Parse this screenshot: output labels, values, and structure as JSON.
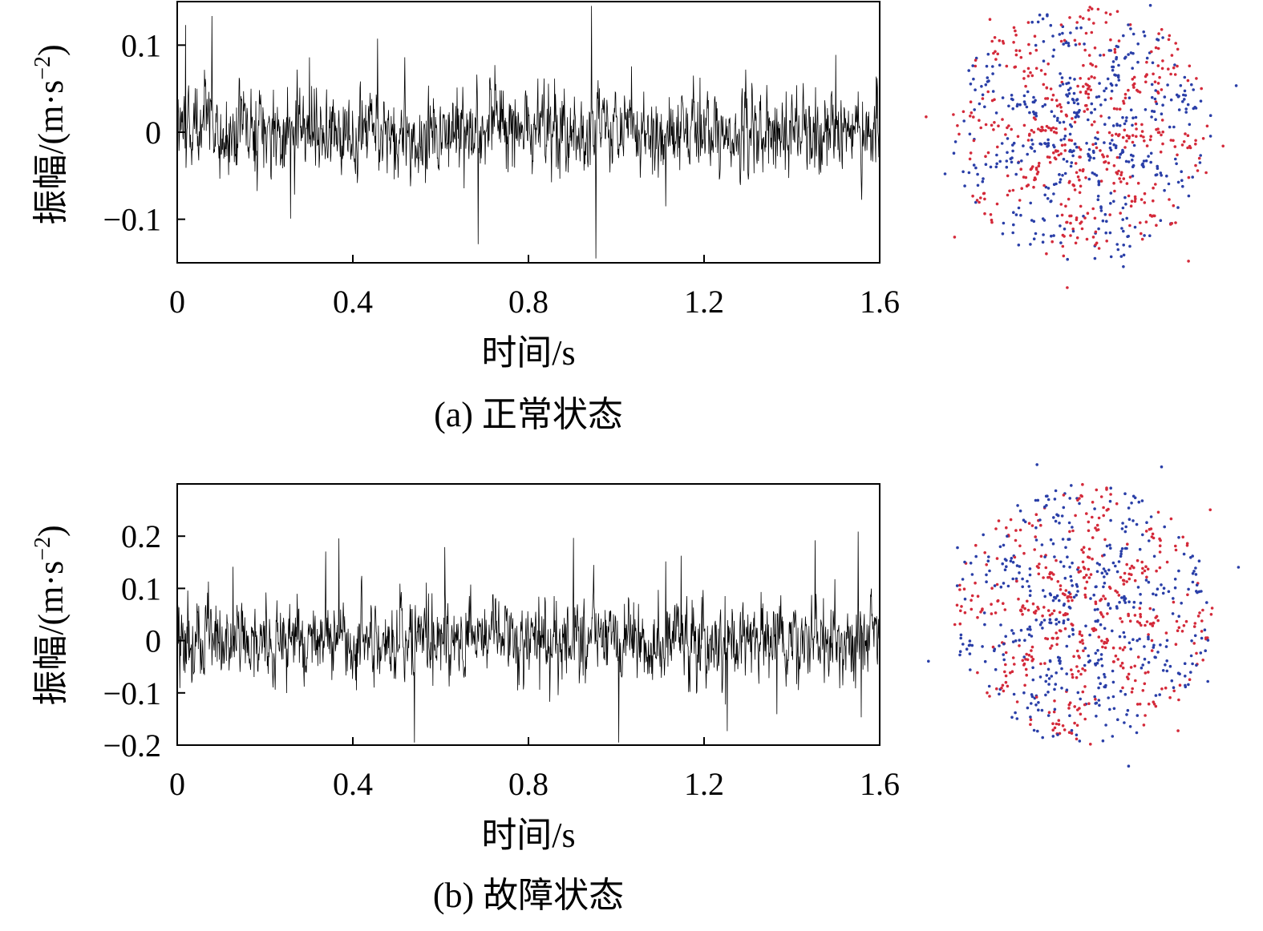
{
  "chart_data": [
    {
      "type": "line",
      "caption": "(a) 正常状态",
      "xlabel": "时间/s",
      "ylabel_main": "振幅/(m·s",
      "ylabel_sup": "−2",
      "ylabel_close": ")",
      "xlim": [
        0,
        1.6
      ],
      "ylim": [
        -0.15,
        0.15
      ],
      "xticks": [
        0,
        0.4,
        0.8,
        1.2,
        1.6
      ],
      "xtick_labels": [
        "0",
        "0.4",
        "0.8",
        "1.2",
        "1.6"
      ],
      "yticks": [
        -0.1,
        0,
        0.1
      ],
      "ytick_labels": [
        "−0.1",
        "0",
        "0.1"
      ],
      "series": [
        {
          "color": "#000000",
          "amplitude_std": 0.035,
          "samples": 1600,
          "seed": 7
        }
      ],
      "constellation": {
        "colors": [
          "#d42a3a",
          "#2a3fa8"
        ],
        "arms": 16
      }
    },
    {
      "type": "line",
      "caption": "(b) 故障状态",
      "xlabel": "时间/s",
      "ylabel_main": "振幅/(m·s",
      "ylabel_sup": "−2",
      "ylabel_close": ")",
      "xlim": [
        0,
        1.6
      ],
      "ylim": [
        -0.2,
        0.3
      ],
      "xticks": [
        0,
        0.4,
        0.8,
        1.2,
        1.6
      ],
      "xtick_labels": [
        "0",
        "0.4",
        "0.8",
        "1.2",
        "1.6"
      ],
      "yticks": [
        -0.2,
        -0.1,
        0,
        0.1,
        0.2
      ],
      "ytick_labels": [
        "−0.2",
        "−0.1",
        "0",
        "0.1",
        "0.2"
      ],
      "series": [
        {
          "color": "#000000",
          "amplitude_std": 0.055,
          "samples": 1600,
          "seed": 19
        }
      ],
      "constellation": {
        "colors": [
          "#d42a3a",
          "#2a3fa8"
        ],
        "arms": 16
      }
    }
  ]
}
